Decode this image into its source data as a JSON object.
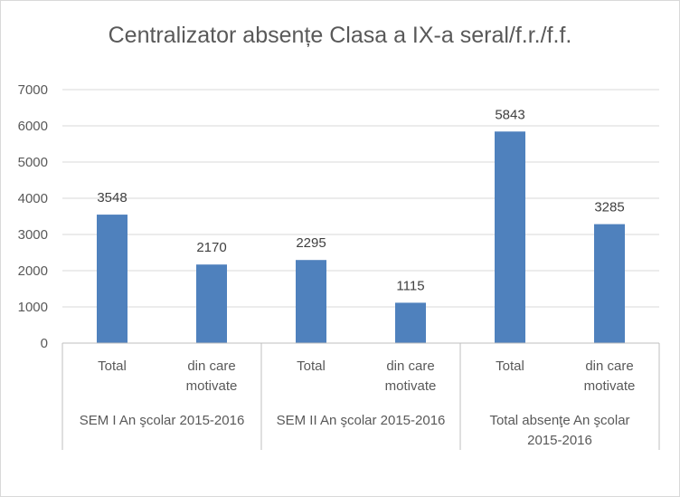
{
  "chart_data": {
    "type": "bar",
    "title": "Centralizator absențe Clasa a IX-a seral/f.r./f.f.",
    "ylim": [
      0,
      7000
    ],
    "yticks": [
      0,
      1000,
      2000,
      3000,
      4000,
      5000,
      6000,
      7000
    ],
    "grid": true,
    "bar_color": "#4f81bd",
    "groups": [
      {
        "label_lines": [
          "SEM I An şcolar 2015-2016"
        ]
      },
      {
        "label_lines": [
          "SEM II An şcolar 2015-2016"
        ]
      },
      {
        "label_lines": [
          "Total absenţe An şcolar",
          "2015-2016"
        ]
      }
    ],
    "categories": [
      {
        "group": 0,
        "label_lines": [
          "Total"
        ],
        "value": 3548
      },
      {
        "group": 0,
        "label_lines": [
          "din care",
          "motivate"
        ],
        "value": 2170
      },
      {
        "group": 1,
        "label_lines": [
          "Total"
        ],
        "value": 2295
      },
      {
        "group": 1,
        "label_lines": [
          "din care",
          "motivate"
        ],
        "value": 1115
      },
      {
        "group": 2,
        "label_lines": [
          "Total"
        ],
        "value": 5843
      },
      {
        "group": 2,
        "label_lines": [
          "din care",
          "motivate"
        ],
        "value": 3285
      }
    ]
  }
}
